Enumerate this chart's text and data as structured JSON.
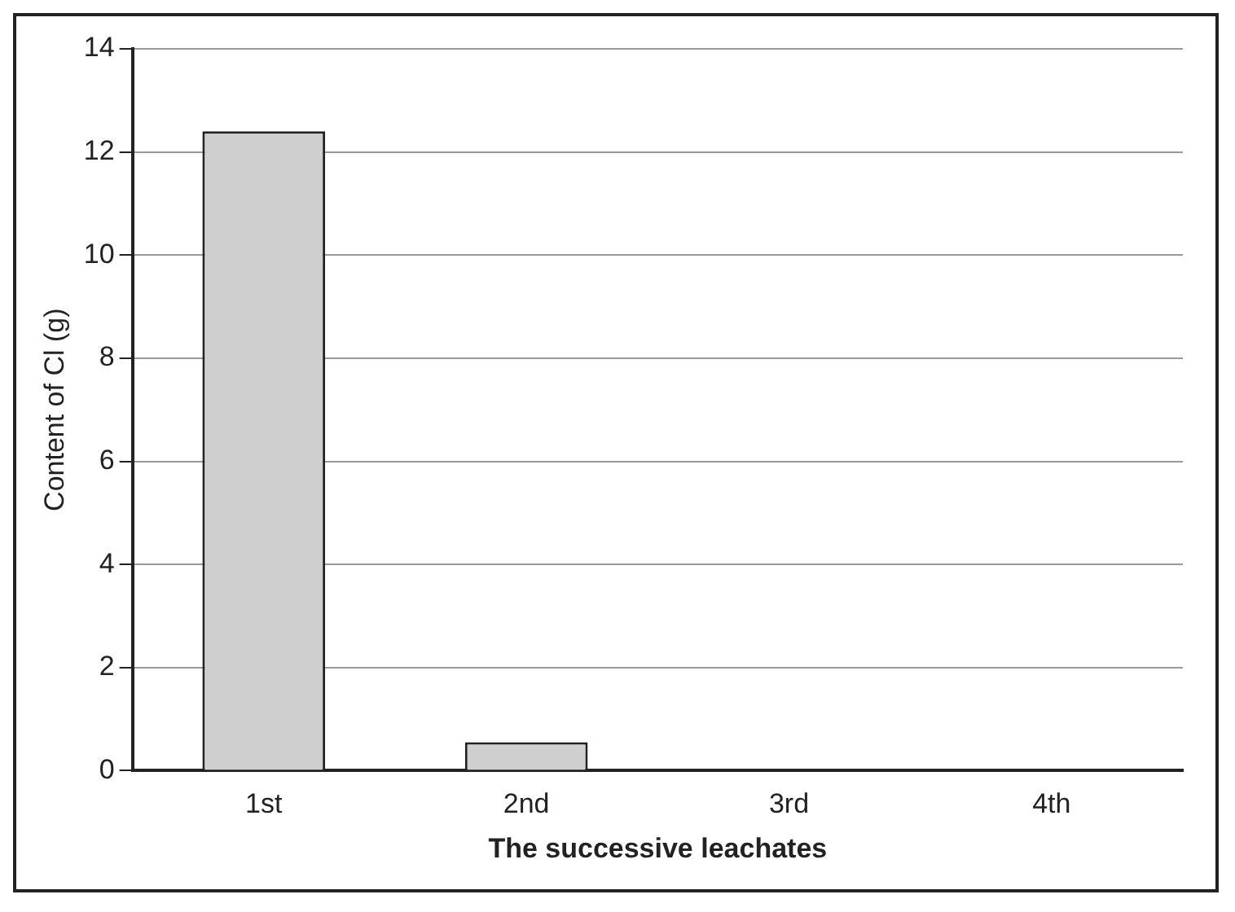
{
  "chart_data": {
    "type": "bar",
    "xlabel": "The successive leachates",
    "ylabel": "Content of Cl (g)",
    "categories": [
      "1st",
      "2nd",
      "3rd",
      "4th"
    ],
    "values": [
      12.4,
      0.55,
      null,
      null
    ],
    "color": "#cfcfcf",
    "ylim": [
      0,
      14
    ],
    "yticks": [
      0,
      2,
      4,
      6,
      8,
      10,
      12,
      14
    ],
    "grid": "y"
  }
}
